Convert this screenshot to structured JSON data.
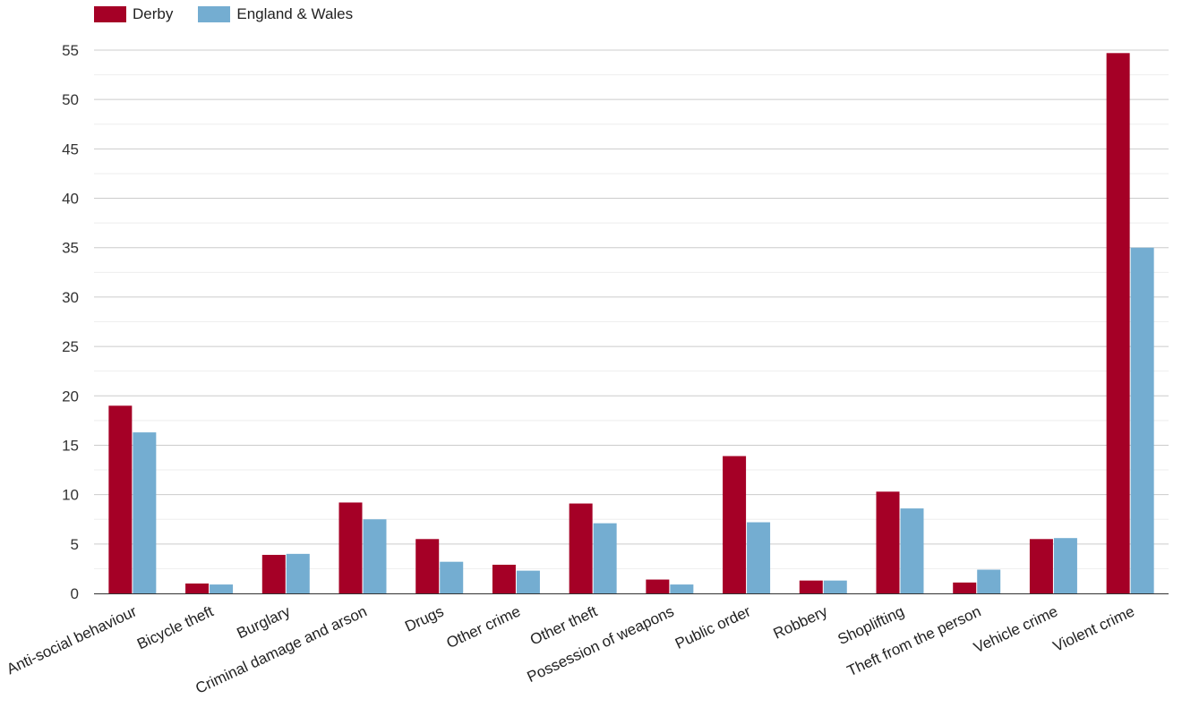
{
  "chart_data": {
    "type": "bar",
    "categories": [
      "Anti-social behaviour",
      "Bicycle theft",
      "Burglary",
      "Criminal damage and arson",
      "Drugs",
      "Other crime",
      "Other theft",
      "Possession of weapons",
      "Public order",
      "Robbery",
      "Shoplifting",
      "Theft from the person",
      "Vehicle crime",
      "Violent crime"
    ],
    "series": [
      {
        "name": "Derby",
        "color": "#a50026",
        "values": [
          19.0,
          1.0,
          3.9,
          9.2,
          5.5,
          2.9,
          9.1,
          1.4,
          13.9,
          1.3,
          10.3,
          1.1,
          5.5,
          54.7
        ]
      },
      {
        "name": "England & Wales",
        "color": "#74add1",
        "values": [
          16.3,
          0.9,
          4.0,
          7.5,
          3.2,
          2.3,
          7.1,
          0.9,
          7.2,
          1.3,
          8.6,
          2.4,
          5.6,
          35.0
        ]
      }
    ],
    "yticks": [
      0,
      5,
      10,
      15,
      20,
      25,
      30,
      35,
      40,
      45,
      50,
      55
    ],
    "ylim": [
      0,
      55
    ],
    "title": "",
    "xlabel": "",
    "ylabel": "",
    "grid": true,
    "legend_position": "top-left"
  }
}
